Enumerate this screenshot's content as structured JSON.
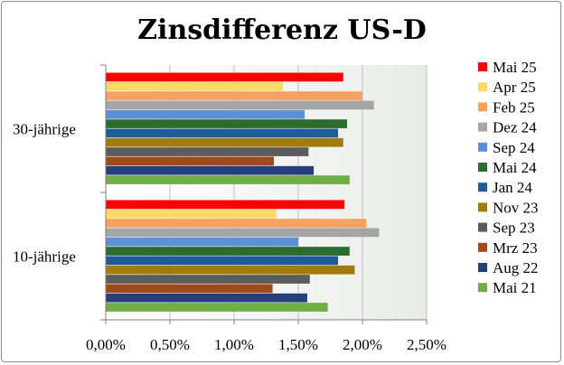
{
  "chart_data": {
    "type": "bar",
    "orientation": "horizontal",
    "title": "Zinsdifferenz US-D",
    "categories": [
      "30-jährige",
      "10-jährige"
    ],
    "series": [
      {
        "name": "Mai 25",
        "color": "#ff0000",
        "values": [
          1.85,
          1.86
        ]
      },
      {
        "name": "Apr 25",
        "color": "#ffd966",
        "values": [
          1.38,
          1.33
        ]
      },
      {
        "name": "Feb 25",
        "color": "#f4a261",
        "values": [
          2.0,
          2.03
        ]
      },
      {
        "name": "Dez 24",
        "color": "#a5a5a5",
        "values": [
          2.09,
          2.13
        ]
      },
      {
        "name": "Sep 24",
        "color": "#5b8fd6",
        "values": [
          1.55,
          1.5
        ]
      },
      {
        "name": "Mai 24",
        "color": "#2e6b2e",
        "values": [
          1.88,
          1.9
        ]
      },
      {
        "name": "Jan 24",
        "color": "#1f5b96",
        "values": [
          1.81,
          1.81
        ]
      },
      {
        "name": "Nov 23",
        "color": "#a07c0a",
        "values": [
          1.85,
          1.94
        ]
      },
      {
        "name": "Sep 23",
        "color": "#5c5c5c",
        "values": [
          1.58,
          1.59
        ]
      },
      {
        "name": "Mrz 23",
        "color": "#9e4a1a",
        "values": [
          1.31,
          1.3
        ]
      },
      {
        "name": "Aug 22",
        "color": "#243f7a",
        "values": [
          1.62,
          1.57
        ]
      },
      {
        "name": "Mai 21",
        "color": "#70ad47",
        "values": [
          1.9,
          1.73
        ]
      }
    ],
    "xlim": [
      0,
      2.5
    ],
    "xticks": [
      "0,00%",
      "0,50%",
      "1,00%",
      "1,50%",
      "2,00%",
      "2,50%"
    ],
    "grid": true,
    "legend": "right"
  }
}
